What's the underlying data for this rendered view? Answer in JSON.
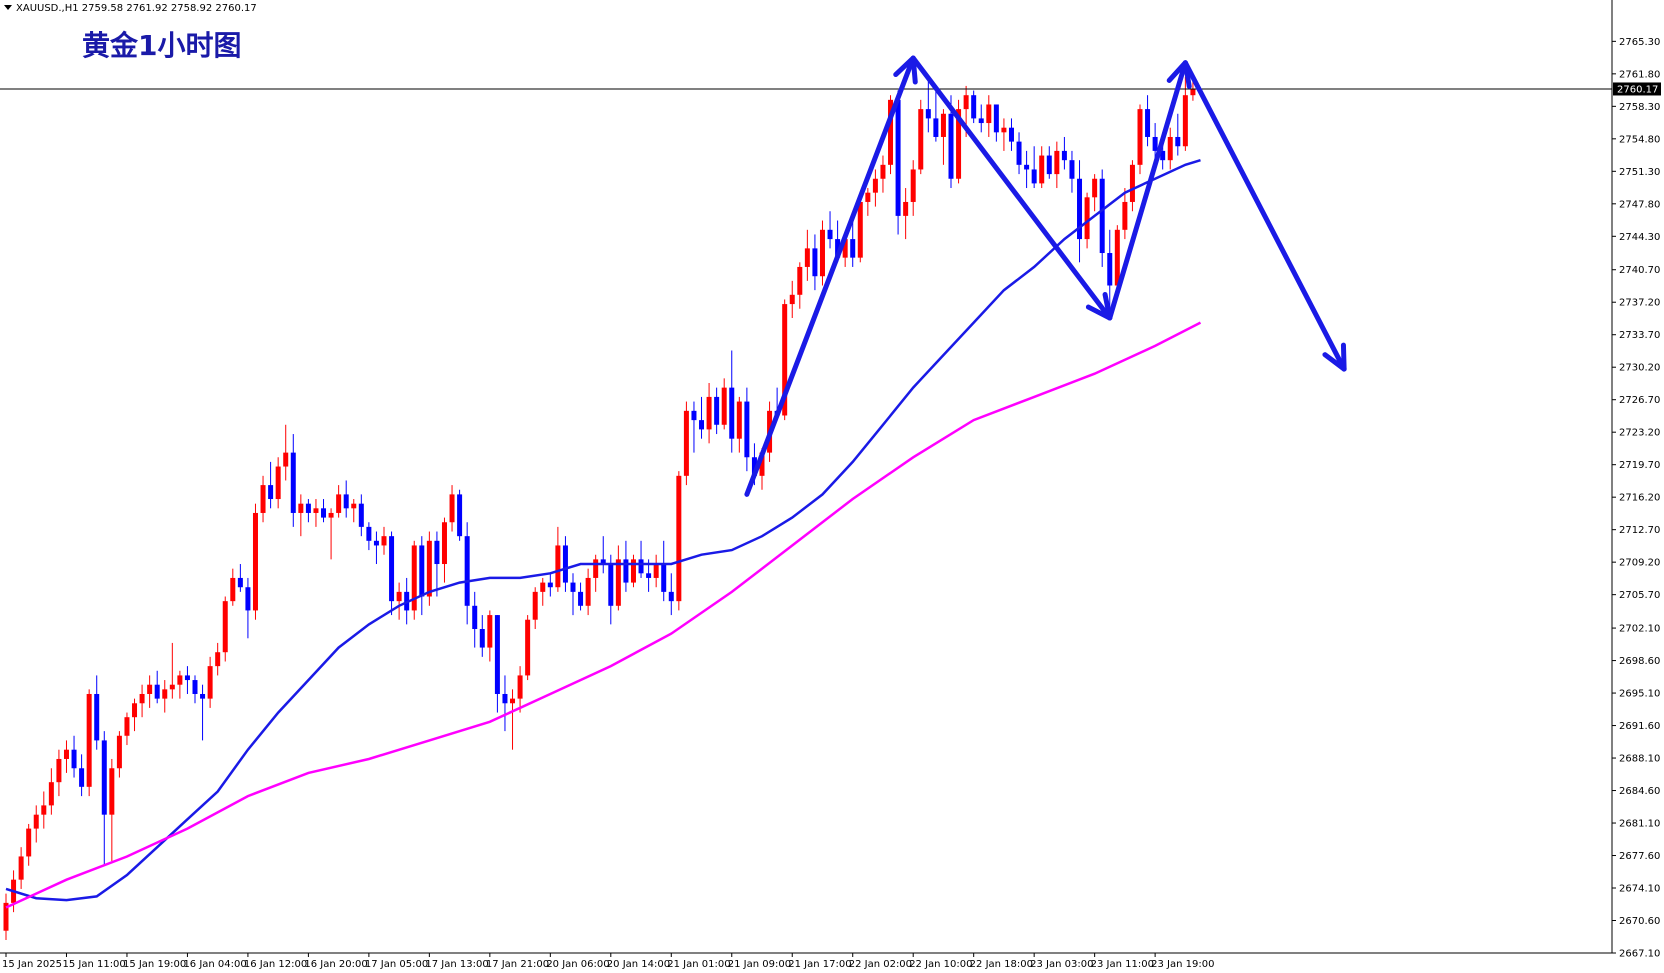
{
  "header": {
    "symbol_line": "XAUUSD.,H1  2759.58 2761.92 2758.92 2760.17",
    "title": "黄金1小时图"
  },
  "current_price_label": "2760.17",
  "colors": {
    "bull_candle": "#ff0000",
    "bear_candle": "#0000ff",
    "ma_short": "#1a1ae6",
    "ma_long": "#ff00ff",
    "arrows": "#1a1ae6",
    "axis": "#000000",
    "background": "#ffffff"
  },
  "chart_data": {
    "type": "candlestick",
    "symbol": "XAUUSD.",
    "timeframe": "H1",
    "ylim": [
      2667.1,
      2767.6
    ],
    "y_ticks": [
      "2765.30",
      "2761.80",
      "2758.30",
      "2754.80",
      "2751.30",
      "2747.80",
      "2744.30",
      "2740.70",
      "2737.20",
      "2733.70",
      "2730.20",
      "2726.70",
      "2723.20",
      "2719.70",
      "2716.20",
      "2712.70",
      "2709.20",
      "2705.70",
      "2702.10",
      "2698.60",
      "2695.10",
      "2691.60",
      "2688.10",
      "2684.60",
      "2681.10",
      "2677.60",
      "2674.10",
      "2670.60",
      "2667.10"
    ],
    "x_ticks": [
      {
        "label": "15 Jan 2025",
        "index": 0
      },
      {
        "label": "15 Jan 11:00",
        "index": 8
      },
      {
        "label": "15 Jan 19:00",
        "index": 16
      },
      {
        "label": "16 Jan 04:00",
        "index": 24
      },
      {
        "label": "16 Jan 12:00",
        "index": 32
      },
      {
        "label": "16 Jan 20:00",
        "index": 40
      },
      {
        "label": "17 Jan 05:00",
        "index": 48
      },
      {
        "label": "17 Jan 13:00",
        "index": 56
      },
      {
        "label": "17 Jan 21:00",
        "index": 64
      },
      {
        "label": "20 Jan 06:00",
        "index": 72
      },
      {
        "label": "20 Jan 14:00",
        "index": 80
      },
      {
        "label": "21 Jan 01:00",
        "index": 88
      },
      {
        "label": "21 Jan 09:00",
        "index": 96
      },
      {
        "label": "21 Jan 17:00",
        "index": 104
      },
      {
        "label": "22 Jan 02:00",
        "index": 112
      },
      {
        "label": "22 Jan 10:00",
        "index": 120
      },
      {
        "label": "22 Jan 18:00",
        "index": 128
      },
      {
        "label": "23 Jan 03:00",
        "index": 136
      },
      {
        "label": "23 Jan 11:00",
        "index": 144
      },
      {
        "label": "23 Jan 19:00",
        "index": 152
      }
    ],
    "current_price": 2760.17,
    "ohlc": [
      [
        2669.5,
        2673.5,
        2668.5,
        2672.5
      ],
      [
        2672.5,
        2676.0,
        2671.5,
        2675.0
      ],
      [
        2675.0,
        2678.5,
        2674.0,
        2677.5
      ],
      [
        2677.5,
        2681.0,
        2676.5,
        2680.5
      ],
      [
        2680.5,
        2683.0,
        2679.0,
        2682.0
      ],
      [
        2682.0,
        2684.5,
        2680.5,
        2683.0
      ],
      [
        2683.0,
        2687.0,
        2682.0,
        2685.5
      ],
      [
        2685.5,
        2689.0,
        2684.0,
        2688.0
      ],
      [
        2688.0,
        2690.0,
        2686.5,
        2689.0
      ],
      [
        2689.0,
        2690.5,
        2686.0,
        2687.0
      ],
      [
        2687.0,
        2688.5,
        2684.0,
        2685.0
      ],
      [
        2685.0,
        2695.5,
        2684.0,
        2695.0
      ],
      [
        2695.0,
        2697.0,
        2689.0,
        2690.0
      ],
      [
        2690.0,
        2691.0,
        2676.5,
        2682.0
      ],
      [
        2682.0,
        2688.0,
        2677.0,
        2687.0
      ],
      [
        2687.0,
        2691.0,
        2686.0,
        2690.5
      ],
      [
        2690.5,
        2693.0,
        2689.5,
        2692.5
      ],
      [
        2692.5,
        2694.5,
        2691.0,
        2694.0
      ],
      [
        2694.0,
        2696.0,
        2692.5,
        2695.0
      ],
      [
        2695.0,
        2697.0,
        2693.5,
        2696.0
      ],
      [
        2696.0,
        2697.5,
        2694.0,
        2694.5
      ],
      [
        2694.5,
        2696.5,
        2693.0,
        2695.5
      ],
      [
        2695.5,
        2700.5,
        2694.5,
        2696.0
      ],
      [
        2696.0,
        2697.5,
        2694.5,
        2697.0
      ],
      [
        2697.0,
        2698.0,
        2695.0,
        2696.5
      ],
      [
        2696.5,
        2697.0,
        2694.0,
        2695.0
      ],
      [
        2695.0,
        2696.0,
        2690.0,
        2694.5
      ],
      [
        2694.5,
        2699.0,
        2693.5,
        2698.0
      ],
      [
        2698.0,
        2700.5,
        2697.0,
        2699.5
      ],
      [
        2699.5,
        2705.5,
        2698.5,
        2705.0
      ],
      [
        2705.0,
        2708.5,
        2704.5,
        2707.5
      ],
      [
        2707.5,
        2709.0,
        2706.0,
        2706.5
      ],
      [
        2706.5,
        2707.5,
        2701.0,
        2704.0
      ],
      [
        2704.0,
        2715.5,
        2703.0,
        2714.5
      ],
      [
        2714.5,
        2718.5,
        2713.5,
        2717.5
      ],
      [
        2717.5,
        2720.0,
        2715.0,
        2716.0
      ],
      [
        2716.0,
        2720.5,
        2715.0,
        2719.5
      ],
      [
        2719.5,
        2724.0,
        2718.0,
        2721.0
      ],
      [
        2721.0,
        2723.0,
        2713.0,
        2714.5
      ],
      [
        2714.5,
        2716.5,
        2712.0,
        2715.5
      ],
      [
        2715.5,
        2716.0,
        2713.5,
        2714.5
      ],
      [
        2714.5,
        2716.0,
        2713.0,
        2715.0
      ],
      [
        2715.0,
        2716.0,
        2713.5,
        2714.0
      ],
      [
        2714.0,
        2715.0,
        2709.5,
        2714.5
      ],
      [
        2714.5,
        2717.5,
        2714.0,
        2716.5
      ],
      [
        2716.5,
        2718.0,
        2714.0,
        2715.0
      ],
      [
        2715.0,
        2716.0,
        2713.5,
        2715.5
      ],
      [
        2715.5,
        2716.5,
        2712.0,
        2713.0
      ],
      [
        2713.0,
        2713.5,
        2710.5,
        2711.5
      ],
      [
        2711.5,
        2712.5,
        2709.0,
        2711.0
      ],
      [
        2711.0,
        2713.0,
        2710.0,
        2712.0
      ],
      [
        2712.0,
        2712.5,
        2703.5,
        2705.0
      ],
      [
        2705.0,
        2707.0,
        2703.0,
        2706.0
      ],
      [
        2706.0,
        2707.5,
        2702.5,
        2704.0
      ],
      [
        2704.0,
        2711.5,
        2703.0,
        2711.0
      ],
      [
        2711.0,
        2712.0,
        2703.5,
        2705.5
      ],
      [
        2705.5,
        2712.5,
        2704.5,
        2711.5
      ],
      [
        2711.5,
        2712.5,
        2705.5,
        2709.0
      ],
      [
        2709.0,
        2714.0,
        2707.0,
        2713.5
      ],
      [
        2713.5,
        2717.5,
        2712.5,
        2716.5
      ],
      [
        2716.5,
        2717.0,
        2711.5,
        2712.0
      ],
      [
        2712.0,
        2713.5,
        2702.5,
        2704.5
      ],
      [
        2704.5,
        2706.0,
        2700.0,
        2702.0
      ],
      [
        2702.0,
        2703.5,
        2699.0,
        2700.0
      ],
      [
        2700.0,
        2704.0,
        2698.5,
        2703.5
      ],
      [
        2703.5,
        2703.5,
        2693.0,
        2695.0
      ],
      [
        2695.0,
        2697.0,
        2691.0,
        2694.0
      ],
      [
        2694.0,
        2695.5,
        2689.0,
        2694.5
      ],
      [
        2694.5,
        2698.0,
        2693.0,
        2697.0
      ],
      [
        2697.0,
        2703.5,
        2696.5,
        2703.0
      ],
      [
        2703.0,
        2706.5,
        2702.0,
        2706.0
      ],
      [
        2706.0,
        2707.5,
        2704.5,
        2707.0
      ],
      [
        2707.0,
        2708.0,
        2705.5,
        2706.5
      ],
      [
        2706.5,
        2713.0,
        2706.0,
        2711.0
      ],
      [
        2711.0,
        2712.0,
        2706.0,
        2707.0
      ],
      [
        2707.0,
        2708.0,
        2703.5,
        2706.0
      ],
      [
        2706.0,
        2707.0,
        2704.0,
        2704.5
      ],
      [
        2704.5,
        2708.5,
        2703.5,
        2707.5
      ],
      [
        2707.5,
        2710.0,
        2706.0,
        2709.5
      ],
      [
        2709.5,
        2712.0,
        2708.0,
        2709.0
      ],
      [
        2709.0,
        2710.0,
        2702.5,
        2704.5
      ],
      [
        2704.5,
        2711.0,
        2704.0,
        2709.5
      ],
      [
        2709.5,
        2711.5,
        2706.0,
        2707.0
      ],
      [
        2707.0,
        2710.0,
        2706.5,
        2709.5
      ],
      [
        2709.5,
        2711.5,
        2707.5,
        2708.0
      ],
      [
        2708.0,
        2709.5,
        2706.0,
        2707.5
      ],
      [
        2707.5,
        2710.0,
        2706.5,
        2709.0
      ],
      [
        2709.0,
        2711.5,
        2705.0,
        2706.0
      ],
      [
        2706.0,
        2708.0,
        2703.5,
        2705.0
      ],
      [
        2705.0,
        2719.0,
        2704.0,
        2718.5
      ],
      [
        2718.5,
        2726.5,
        2717.5,
        2725.5
      ],
      [
        2725.5,
        2726.5,
        2721.0,
        2724.5
      ],
      [
        2724.5,
        2727.0,
        2722.5,
        2723.5
      ],
      [
        2723.5,
        2728.5,
        2722.0,
        2727.0
      ],
      [
        2727.0,
        2728.0,
        2723.0,
        2724.0
      ],
      [
        2724.0,
        2729.0,
        2723.5,
        2728.0
      ],
      [
        2728.0,
        2732.0,
        2721.0,
        2722.5
      ],
      [
        2722.5,
        2727.0,
        2721.0,
        2726.5
      ],
      [
        2726.5,
        2728.0,
        2719.0,
        2720.5
      ],
      [
        2720.5,
        2722.0,
        2717.5,
        2718.5
      ],
      [
        2718.5,
        2721.5,
        2717.0,
        2721.0
      ],
      [
        2721.0,
        2726.5,
        2720.0,
        2725.5
      ],
      [
        2725.5,
        2728.0,
        2724.5,
        2725.0
      ],
      [
        2725.0,
        2737.5,
        2724.5,
        2737.0
      ],
      [
        2737.0,
        2739.5,
        2735.5,
        2738.0
      ],
      [
        2738.0,
        2741.5,
        2736.5,
        2741.0
      ],
      [
        2741.0,
        2745.0,
        2739.5,
        2743.0
      ],
      [
        2743.0,
        2744.5,
        2738.5,
        2740.0
      ],
      [
        2740.0,
        2746.0,
        2739.0,
        2745.0
      ],
      [
        2745.0,
        2747.0,
        2743.0,
        2744.0
      ],
      [
        2744.0,
        2746.0,
        2741.5,
        2742.0
      ],
      [
        2742.0,
        2744.5,
        2741.0,
        2744.0
      ],
      [
        2744.0,
        2746.0,
        2741.0,
        2742.0
      ],
      [
        2742.0,
        2748.5,
        2741.5,
        2748.0
      ],
      [
        2748.0,
        2749.5,
        2746.5,
        2749.0
      ],
      [
        2749.0,
        2751.5,
        2747.5,
        2750.5
      ],
      [
        2750.5,
        2753.0,
        2749.0,
        2752.0
      ],
      [
        2752.0,
        2759.5,
        2751.0,
        2759.0
      ],
      [
        2759.0,
        2760.0,
        2744.5,
        2746.5
      ],
      [
        2746.5,
        2749.5,
        2744.0,
        2748.0
      ],
      [
        2748.0,
        2752.5,
        2746.5,
        2751.5
      ],
      [
        2751.5,
        2759.0,
        2751.0,
        2758.0
      ],
      [
        2758.0,
        2761.0,
        2755.5,
        2757.0
      ],
      [
        2757.0,
        2760.5,
        2754.5,
        2755.0
      ],
      [
        2755.0,
        2758.0,
        2752.0,
        2757.5
      ],
      [
        2757.5,
        2759.5,
        2749.5,
        2750.5
      ],
      [
        2750.5,
        2759.0,
        2750.0,
        2758.0
      ],
      [
        2758.0,
        2760.5,
        2755.0,
        2759.5
      ],
      [
        2759.5,
        2760.0,
        2756.5,
        2757.0
      ],
      [
        2757.0,
        2758.5,
        2755.5,
        2756.5
      ],
      [
        2756.5,
        2759.5,
        2755.0,
        2758.5
      ],
      [
        2758.5,
        2758.5,
        2754.5,
        2755.5
      ],
      [
        2755.5,
        2757.0,
        2753.5,
        2756.0
      ],
      [
        2756.0,
        2757.0,
        2753.5,
        2754.5
      ],
      [
        2754.5,
        2755.5,
        2751.0,
        2752.0
      ],
      [
        2752.0,
        2753.5,
        2749.5,
        2751.5
      ],
      [
        2751.5,
        2754.0,
        2749.5,
        2750.0
      ],
      [
        2750.0,
        2754.0,
        2749.5,
        2753.0
      ],
      [
        2753.0,
        2754.0,
        2750.5,
        2751.0
      ],
      [
        2751.0,
        2754.5,
        2749.5,
        2753.5
      ],
      [
        2753.5,
        2755.0,
        2751.5,
        2752.5
      ],
      [
        2752.5,
        2753.5,
        2749.0,
        2750.5
      ],
      [
        2750.5,
        2752.5,
        2741.5,
        2744.0
      ],
      [
        2744.0,
        2749.0,
        2743.0,
        2748.5
      ],
      [
        2748.5,
        2751.0,
        2747.0,
        2750.5
      ],
      [
        2750.5,
        2751.5,
        2741.0,
        2742.5
      ],
      [
        2742.5,
        2745.0,
        2736.0,
        2739.0
      ],
      [
        2739.0,
        2745.5,
        2738.0,
        2745.0
      ],
      [
        2745.0,
        2749.5,
        2744.0,
        2748.0
      ],
      [
        2748.0,
        2752.5,
        2747.0,
        2752.0
      ],
      [
        2752.0,
        2758.5,
        2751.0,
        2758.0
      ],
      [
        2758.0,
        2759.5,
        2754.0,
        2755.0
      ],
      [
        2755.0,
        2756.5,
        2752.0,
        2753.5
      ],
      [
        2753.5,
        2755.5,
        2751.5,
        2752.5
      ],
      [
        2752.5,
        2756.0,
        2751.5,
        2755.0
      ],
      [
        2755.0,
        2757.5,
        2753.0,
        2754.0
      ],
      [
        2754.0,
        2761.5,
        2753.5,
        2759.5
      ],
      [
        2759.5,
        2761.9,
        2758.9,
        2760.2
      ]
    ],
    "ma_short": [
      [
        0,
        2674.0
      ],
      [
        4,
        2673.0
      ],
      [
        8,
        2672.8
      ],
      [
        12,
        2673.2
      ],
      [
        16,
        2675.5
      ],
      [
        20,
        2678.5
      ],
      [
        24,
        2681.5
      ],
      [
        28,
        2684.5
      ],
      [
        32,
        2689.0
      ],
      [
        36,
        2693.0
      ],
      [
        40,
        2696.5
      ],
      [
        44,
        2700.0
      ],
      [
        48,
        2702.5
      ],
      [
        52,
        2704.5
      ],
      [
        56,
        2706.0
      ],
      [
        60,
        2707.0
      ],
      [
        64,
        2707.5
      ],
      [
        68,
        2707.5
      ],
      [
        72,
        2708.0
      ],
      [
        76,
        2709.0
      ],
      [
        80,
        2709.0
      ],
      [
        84,
        2709.0
      ],
      [
        88,
        2709.0
      ],
      [
        92,
        2710.0
      ],
      [
        96,
        2710.5
      ],
      [
        100,
        2712.0
      ],
      [
        104,
        2714.0
      ],
      [
        108,
        2716.5
      ],
      [
        112,
        2720.0
      ],
      [
        116,
        2724.0
      ],
      [
        120,
        2728.0
      ],
      [
        124,
        2731.5
      ],
      [
        128,
        2735.0
      ],
      [
        132,
        2738.5
      ],
      [
        136,
        2741.0
      ],
      [
        140,
        2744.0
      ],
      [
        144,
        2746.5
      ],
      [
        148,
        2749.0
      ],
      [
        152,
        2750.5
      ],
      [
        156,
        2752.0
      ],
      [
        158,
        2752.5
      ]
    ],
    "ma_long": [
      [
        0,
        2672.0
      ],
      [
        8,
        2675.0
      ],
      [
        16,
        2677.5
      ],
      [
        24,
        2680.5
      ],
      [
        32,
        2684.0
      ],
      [
        40,
        2686.5
      ],
      [
        48,
        2688.0
      ],
      [
        56,
        2690.0
      ],
      [
        64,
        2692.0
      ],
      [
        72,
        2695.0
      ],
      [
        80,
        2698.0
      ],
      [
        88,
        2701.5
      ],
      [
        96,
        2706.0
      ],
      [
        104,
        2711.0
      ],
      [
        112,
        2716.0
      ],
      [
        120,
        2720.5
      ],
      [
        128,
        2724.5
      ],
      [
        136,
        2727.0
      ],
      [
        144,
        2729.5
      ],
      [
        152,
        2732.5
      ],
      [
        158,
        2735.0
      ]
    ],
    "annotation_arrows": [
      {
        "from": [
          98,
          2716.5
        ],
        "to": [
          120,
          2763.5
        ]
      },
      {
        "from": [
          120,
          2763.5
        ],
        "to": [
          146,
          2735.5
        ]
      },
      {
        "from": [
          146,
          2735.5
        ],
        "to": [
          156,
          2763.0
        ]
      },
      {
        "from": [
          156,
          2763.0
        ],
        "to": [
          177,
          2730.0
        ]
      }
    ]
  }
}
